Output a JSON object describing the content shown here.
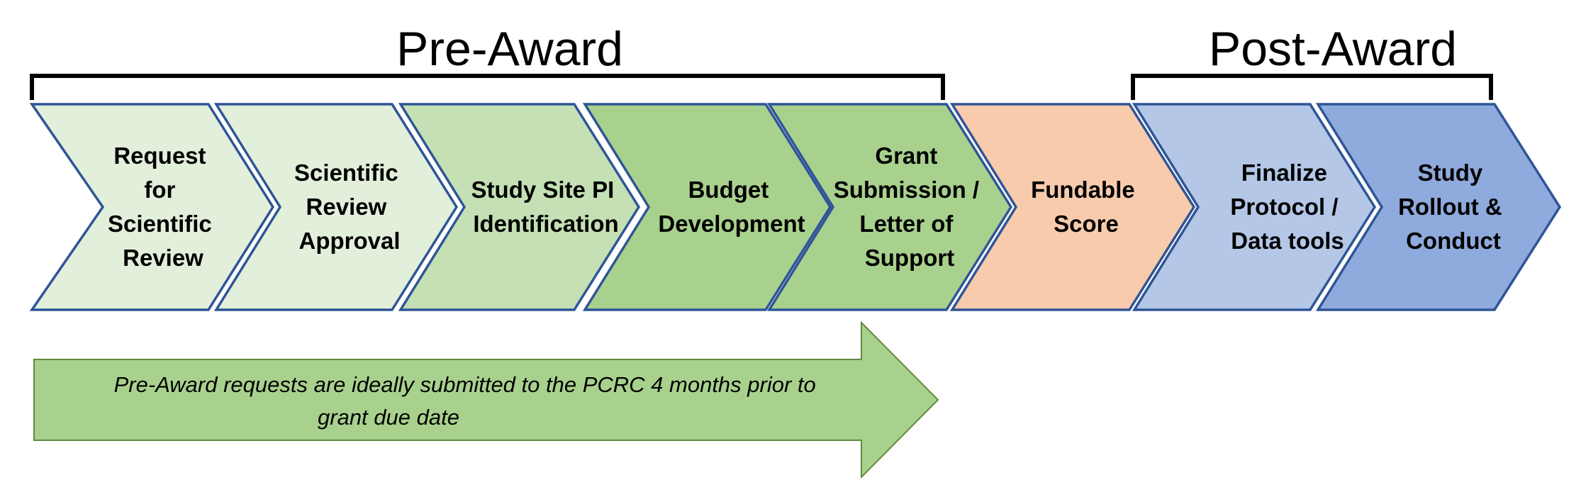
{
  "phases": [
    {
      "label": "Pre-Award"
    },
    {
      "label": "Post-Award"
    }
  ],
  "steps": [
    {
      "lines": [
        "Request",
        "for",
        "Scientific",
        "Review"
      ],
      "color": "#E2EFDA"
    },
    {
      "lines": [
        "Scientific",
        "Review",
        "Approval"
      ],
      "color": "#E2EFDA"
    },
    {
      "lines": [
        "Study Site PI",
        "Identification"
      ],
      "color": "#C5E0B4"
    },
    {
      "lines": [
        "Budget",
        "Development"
      ],
      "color": "#A9D18E"
    },
    {
      "lines": [
        "Grant",
        "Submission /",
        "Letter of",
        "Support"
      ],
      "color": "#A9D18E"
    },
    {
      "lines": [
        "Fundable",
        "Score"
      ],
      "color": "#F8CBAD"
    },
    {
      "lines": [
        "Finalize",
        "Protocol /",
        "Data tools"
      ],
      "color": "#B4C7E7"
    },
    {
      "lines": [
        "Study",
        "Rollout &",
        "Conduct"
      ],
      "color": "#8FAADC"
    }
  ],
  "outline_color": "#2F5597",
  "note": {
    "lines": [
      "Pre-Award requests are ideally submitted to the PCRC 4 months prior to",
      "grant due date"
    ],
    "color": "#A9D18E"
  }
}
